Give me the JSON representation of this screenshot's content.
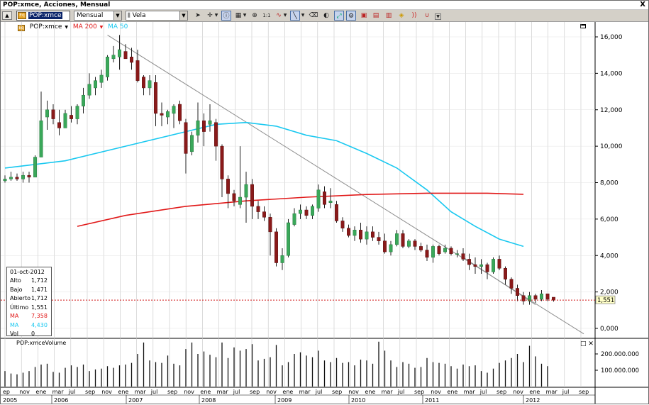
{
  "window": {
    "title": "POP:xmce, Acciones, Mensual",
    "close_label": "X"
  },
  "toolbar": {
    "symbol": "POP:xmce",
    "symbol_icon_text": "Eq",
    "period": "Mensual",
    "chart_type": "Vela",
    "chart_type_icon": "candlestick-icon",
    "tools": [
      "cursor-icon",
      "crosshair-icon",
      "info-icon",
      "grid-icon",
      "zoom-icon",
      "bar-count-icon",
      "trend-pen-icon",
      "line-draw-icon",
      "eraser-icon",
      "drop-icon",
      "indicator-icon",
      "window-icon",
      "copy-icon",
      "tile-icon",
      "chart-icon",
      "sound-icon",
      "magnet-icon",
      "dropdown-icon"
    ],
    "grid_label": "▦",
    "count_label": "1:1"
  },
  "legend": {
    "symbol_icon_text": "Eq",
    "symbol": "POP:xmce",
    "ma200": "MA 200",
    "ma50": "MA 50",
    "ma200_color": "#e11919",
    "ma50_color": "#19c8f0"
  },
  "price_axis": {
    "labels": [
      "16,000",
      "14,000",
      "12,000",
      "10,000",
      "8,000",
      "6,000",
      "4,000",
      "2,000",
      "0,000"
    ],
    "current_price_tag": "1,551"
  },
  "volume_axis": {
    "labels": [
      "200.000.000",
      "100.000.000"
    ]
  },
  "volume_pane": {
    "title": "POP:xmceVolume",
    "buttons": [
      "□",
      "✕"
    ]
  },
  "info": {
    "date": "01-oct-2012",
    "rows": [
      {
        "key": "Alto",
        "value": "1,712",
        "color": "#000000"
      },
      {
        "key": "Bajo",
        "value": "1,471",
        "color": "#000000"
      },
      {
        "key": "Abierto",
        "value": "1,712",
        "color": "#000000"
      },
      {
        "key": "Último",
        "value": "1,551",
        "color": "#000000"
      },
      {
        "key": "MA",
        "value": "7,358",
        "color": "#e11919"
      },
      {
        "key": "MA",
        "value": "4,430",
        "color": "#19c8f0"
      },
      {
        "key": "Vol",
        "value": "0",
        "color": "#000000"
      }
    ]
  },
  "x_axis": {
    "months": [
      "ep",
      "nov",
      "ene",
      "mar",
      "jul",
      "sep",
      "nov",
      "ene",
      "mar",
      "jul",
      "sep",
      "nov",
      "ene",
      "mar",
      "jul",
      "sep",
      "nov",
      "ene",
      "mar",
      "jul",
      "sep",
      "nov",
      "ene",
      "mar",
      "jul",
      "sep",
      "nov",
      "ene",
      "mar",
      "jul",
      "sep",
      "nov",
      "ene",
      "mar",
      "jul",
      "sep"
    ],
    "years": [
      "2005",
      "2006",
      "2007",
      "2008",
      "2009",
      "2010",
      "2011",
      "2012"
    ]
  },
  "chart_data": {
    "type": "candlestick",
    "symbol": "POP:xmce",
    "period": "Mensual",
    "y_range": [
      -0.5,
      16.5
    ],
    "y_ticks": [
      0,
      2,
      4,
      6,
      8,
      10,
      12,
      14,
      16
    ],
    "candles": [
      [
        8.1,
        8.4,
        8.0,
        8.2
      ],
      [
        8.2,
        8.6,
        8.1,
        8.3
      ],
      [
        8.3,
        8.5,
        8.1,
        8.2
      ],
      [
        8.2,
        8.6,
        8.0,
        8.4
      ],
      [
        8.4,
        8.6,
        8.0,
        8.3
      ],
      [
        8.3,
        9.5,
        8.3,
        9.4
      ],
      [
        9.4,
        13.0,
        9.4,
        11.4
      ],
      [
        11.6,
        12.5,
        10.9,
        12.0
      ],
      [
        12.0,
        12.3,
        11.2,
        11.5
      ],
      [
        11.3,
        12.0,
        10.6,
        11.0
      ],
      [
        11.0,
        12.0,
        11.0,
        11.8
      ],
      [
        11.7,
        12.2,
        11.3,
        11.5
      ],
      [
        11.5,
        12.3,
        11.2,
        12.2
      ],
      [
        12.2,
        13.2,
        11.8,
        12.8
      ],
      [
        12.8,
        14.0,
        12.6,
        13.4
      ],
      [
        13.2,
        13.8,
        12.8,
        13.6
      ],
      [
        13.5,
        14.2,
        13.2,
        13.9
      ],
      [
        13.8,
        15.0,
        13.6,
        14.9
      ],
      [
        14.8,
        15.5,
        14.6,
        15.0
      ],
      [
        14.9,
        16.1,
        14.2,
        15.3
      ],
      [
        15.2,
        15.6,
        14.8,
        14.8
      ],
      [
        14.9,
        15.4,
        14.2,
        14.6
      ],
      [
        14.7,
        15.3,
        13.5,
        13.6
      ],
      [
        13.8,
        13.9,
        12.8,
        13.2
      ],
      [
        13.2,
        13.9,
        12.8,
        13.6
      ],
      [
        13.5,
        13.9,
        11.1,
        11.8
      ],
      [
        11.8,
        12.4,
        11.1,
        11.7
      ],
      [
        11.6,
        12.0,
        11.2,
        11.9
      ],
      [
        11.8,
        12.3,
        11.0,
        12.2
      ],
      [
        12.3,
        12.5,
        11.2,
        11.4
      ],
      [
        11.3,
        11.5,
        8.5,
        9.6
      ],
      [
        9.7,
        10.8,
        9.5,
        10.6
      ],
      [
        10.6,
        12.4,
        10.2,
        11.4
      ],
      [
        11.4,
        11.8,
        10.0,
        10.8
      ],
      [
        11.2,
        12.3,
        10.8,
        11.4
      ],
      [
        11.3,
        11.5,
        9.2,
        10.0
      ],
      [
        10.0,
        10.1,
        7.2,
        8.2
      ],
      [
        8.2,
        8.4,
        6.6,
        7.4
      ],
      [
        7.4,
        7.6,
        6.7,
        7.0
      ],
      [
        6.8,
        10.0,
        6.6,
        7.2
      ],
      [
        7.2,
        8.6,
        5.8,
        7.9
      ],
      [
        7.9,
        8.2,
        6.0,
        6.7
      ],
      [
        6.7,
        7.0,
        6.0,
        6.4
      ],
      [
        6.4,
        6.7,
        5.9,
        6.1
      ],
      [
        6.1,
        6.3,
        4.0,
        5.3
      ],
      [
        5.3,
        5.5,
        3.4,
        3.6
      ],
      [
        3.6,
        4.4,
        3.2,
        4.0
      ],
      [
        4.0,
        6.0,
        3.9,
        5.8
      ],
      [
        5.7,
        6.6,
        5.6,
        6.3
      ],
      [
        6.3,
        6.8,
        6.0,
        6.5
      ],
      [
        6.5,
        6.7,
        6.0,
        6.2
      ],
      [
        6.2,
        6.8,
        6.0,
        6.7
      ],
      [
        6.6,
        7.9,
        6.4,
        7.6
      ],
      [
        7.5,
        7.8,
        6.6,
        6.8
      ],
      [
        6.9,
        7.7,
        6.6,
        7.0
      ],
      [
        6.8,
        7.0,
        5.8,
        5.9
      ],
      [
        5.9,
        6.1,
        5.3,
        5.5
      ],
      [
        5.5,
        5.7,
        5.0,
        5.1
      ],
      [
        5.1,
        5.6,
        4.8,
        5.4
      ],
      [
        5.4,
        5.8,
        4.7,
        4.9
      ],
      [
        4.9,
        5.6,
        4.6,
        5.3
      ],
      [
        5.3,
        5.6,
        4.8,
        5.0
      ],
      [
        5.0,
        5.3,
        4.6,
        4.8
      ],
      [
        4.8,
        5.2,
        4.1,
        4.2
      ],
      [
        4.2,
        4.8,
        4.0,
        4.6
      ],
      [
        4.6,
        5.4,
        4.5,
        5.2
      ],
      [
        5.2,
        5.4,
        4.4,
        4.5
      ],
      [
        4.5,
        4.9,
        4.4,
        4.8
      ],
      [
        4.8,
        4.9,
        4.3,
        4.5
      ],
      [
        4.5,
        4.7,
        4.2,
        4.3
      ],
      [
        4.3,
        4.6,
        3.7,
        3.9
      ],
      [
        3.9,
        4.6,
        3.6,
        4.5
      ],
      [
        4.5,
        4.6,
        4.0,
        4.1
      ],
      [
        4.2,
        4.6,
        4.1,
        4.4
      ],
      [
        4.4,
        4.5,
        4.0,
        4.1
      ],
      [
        4.1,
        4.3,
        3.9,
        4.1
      ],
      [
        4.1,
        4.4,
        3.7,
        3.8
      ],
      [
        3.8,
        4.1,
        3.2,
        3.5
      ],
      [
        3.5,
        3.9,
        3.0,
        3.4
      ],
      [
        3.4,
        3.8,
        3.0,
        3.5
      ],
      [
        3.5,
        3.6,
        2.7,
        3.1
      ],
      [
        3.1,
        3.9,
        3.0,
        3.8
      ],
      [
        3.8,
        4.0,
        3.2,
        3.3
      ],
      [
        3.3,
        3.4,
        2.4,
        2.7
      ],
      [
        2.7,
        2.8,
        1.9,
        2.2
      ],
      [
        2.2,
        2.4,
        1.5,
        1.8
      ],
      [
        1.8,
        2.0,
        1.3,
        1.5
      ],
      [
        1.5,
        2.0,
        1.3,
        1.8
      ],
      [
        1.8,
        1.9,
        1.4,
        1.6
      ],
      [
        1.6,
        2.1,
        1.5,
        1.9
      ],
      [
        1.9,
        1.9,
        1.5,
        1.6
      ],
      [
        1.712,
        1.712,
        1.471,
        1.551
      ]
    ],
    "ma50": [
      [
        0,
        8.8
      ],
      [
        10,
        9.2
      ],
      [
        20,
        10.0
      ],
      [
        30,
        10.8
      ],
      [
        35,
        11.2
      ],
      [
        40,
        11.3
      ],
      [
        45,
        11.1
      ],
      [
        50,
        10.6
      ],
      [
        55,
        10.3
      ],
      [
        60,
        9.6
      ],
      [
        65,
        8.8
      ],
      [
        70,
        7.6
      ],
      [
        74,
        6.4
      ],
      [
        78,
        5.6
      ],
      [
        82,
        4.9
      ],
      [
        86,
        4.5
      ]
    ],
    "ma200": [
      [
        12,
        5.6
      ],
      [
        20,
        6.2
      ],
      [
        30,
        6.7
      ],
      [
        40,
        7.0
      ],
      [
        50,
        7.2
      ],
      [
        60,
        7.35
      ],
      [
        70,
        7.42
      ],
      [
        80,
        7.42
      ],
      [
        86,
        7.36
      ]
    ],
    "trendlines": [
      [
        [
          17,
          16.1
        ],
        [
          96,
          -0.3
        ]
      ],
      [
        [
          76,
          3.9
        ],
        [
          88,
          1.3
        ]
      ]
    ],
    "last_price": 1.551,
    "volume": [
      95,
      80,
      75,
      85,
      95,
      120,
      135,
      140,
      90,
      85,
      115,
      130,
      120,
      135,
      95,
      105,
      110,
      125,
      115,
      130,
      135,
      145,
      200,
      270,
      160,
      150,
      145,
      190,
      140,
      130,
      230,
      270,
      200,
      215,
      195,
      180,
      270,
      175,
      240,
      220,
      230,
      260,
      160,
      170,
      180,
      255,
      130,
      150,
      200,
      210,
      190,
      180,
      220,
      160,
      150,
      175,
      145,
      150,
      130,
      165,
      160,
      140,
      275,
      220,
      160,
      120,
      150,
      140,
      115,
      120,
      175,
      150,
      145,
      140,
      125,
      110,
      135,
      125,
      130,
      95,
      85,
      110,
      145,
      160,
      175,
      200,
      150,
      250,
      185,
      140,
      125,
      0
    ]
  }
}
